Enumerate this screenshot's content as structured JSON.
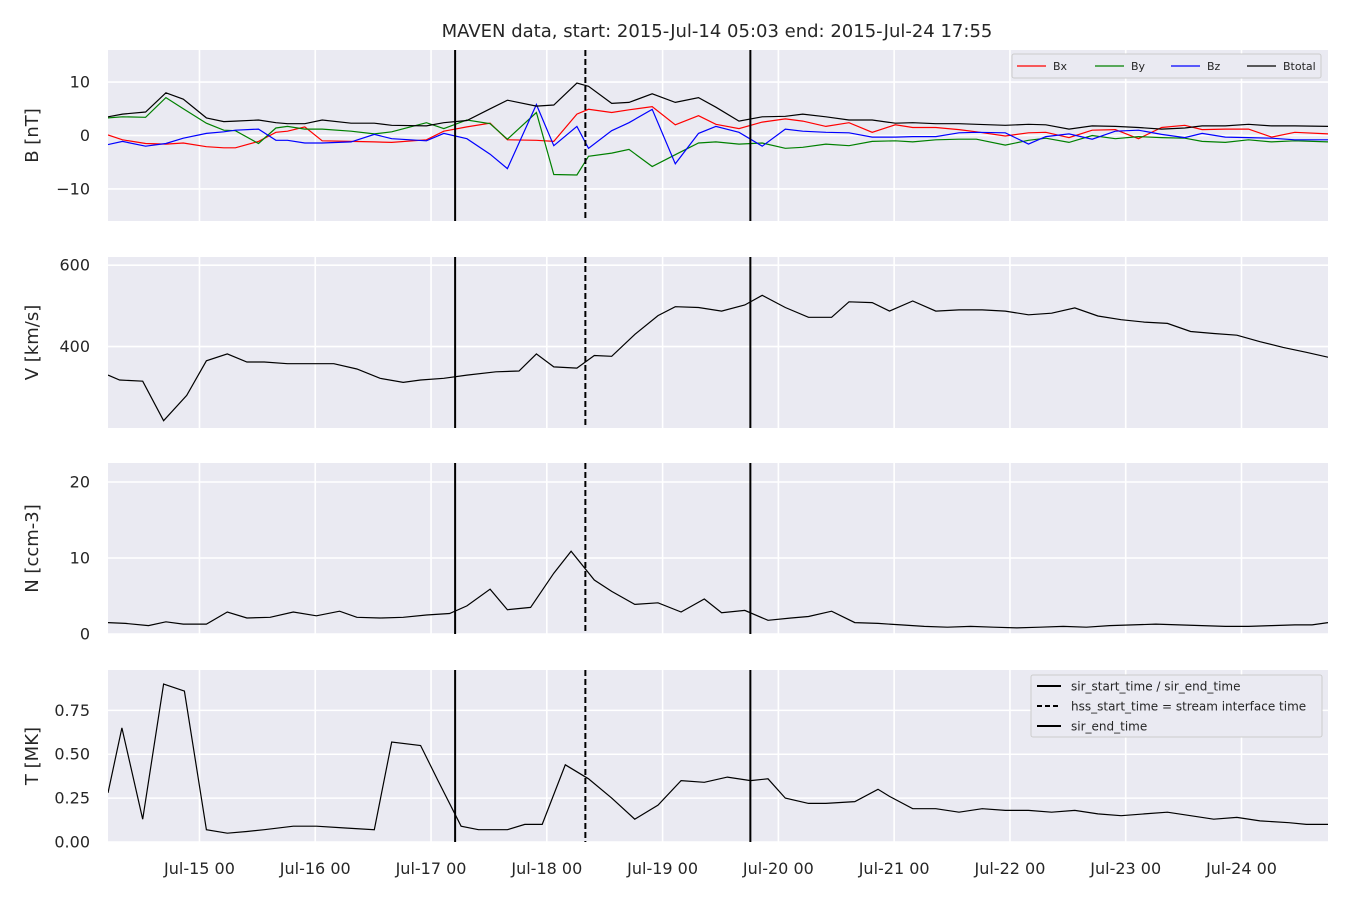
{
  "title": "MAVEN data, start: 2015-Jul-14 05:03  end: 2015-Jul-24 17:55",
  "x_ticks": [
    "Jul-15 00",
    "Jul-16 00",
    "Jul-17 00",
    "Jul-18 00",
    "Jul-19 00",
    "Jul-20 00",
    "Jul-21 00",
    "Jul-22 00",
    "Jul-23 00",
    "Jul-24 00"
  ],
  "colors": {
    "Bx": "#ff0000",
    "By": "#008000",
    "Bz": "#0000ff",
    "Btotal": "#000000",
    "plot_bg": "#eaeaf2",
    "grid": "#ffffff"
  },
  "chart_data": [
    {
      "type": "line",
      "ylabel": "B [nT]",
      "ylim": [
        -16,
        16
      ],
      "yticks": [
        -10,
        0,
        10
      ],
      "x_range": [
        0,
        10.537
      ],
      "x_unit": "days since 2015-Jul-14 05:03",
      "x": [
        0,
        0.125,
        0.325,
        0.5,
        0.65,
        0.85,
        1.0,
        1.1,
        1.3,
        1.45,
        1.55,
        1.7,
        1.85,
        2.1,
        2.3,
        2.45,
        2.75,
        2.9,
        3.1,
        3.3,
        3.45,
        3.7,
        3.85,
        4.05,
        4.15,
        4.35,
        4.5,
        4.7,
        4.9,
        5.1,
        5.25,
        5.45,
        5.65,
        5.85,
        6.0,
        6.2,
        6.4,
        6.6,
        6.8,
        6.95,
        7.15,
        7.35,
        7.5,
        7.75,
        7.95,
        8.1,
        8.3,
        8.5,
        8.7,
        8.9,
        9.1,
        9.3,
        9.45,
        9.65,
        9.85,
        10.05,
        10.25,
        10.537
      ],
      "series": [
        {
          "name": "Bx",
          "values": [
            0.1,
            -0.8,
            -1.5,
            -1.6,
            -1.4,
            -2.1,
            -2.3,
            -2.3,
            -1.1,
            0.6,
            0.8,
            1.6,
            -1.0,
            -1.1,
            -1.2,
            -1.3,
            -0.8,
            0.8,
            1.6,
            2.3,
            -0.8,
            -0.9,
            -1.1,
            4.0,
            4.9,
            4.3,
            4.8,
            5.4,
            2.0,
            3.7,
            2.1,
            1.3,
            2.5,
            3.1,
            2.7,
            1.7,
            2.4,
            0.6,
            2.0,
            1.5,
            1.5,
            1.1,
            0.7,
            -0.1,
            0.5,
            0.6,
            -0.4,
            1.0,
            1.1,
            -0.6,
            1.5,
            1.9,
            1.1,
            1.2,
            1.2,
            -0.3,
            0.6,
            0.3
          ]
        },
        {
          "name": "By",
          "values": [
            3.3,
            3.5,
            3.4,
            7.1,
            5.0,
            2.3,
            1.0,
            0.9,
            -1.5,
            1.4,
            1.7,
            1.2,
            1.2,
            0.8,
            0.3,
            0.7,
            2.4,
            1.3,
            2.9,
            2.2,
            -0.7,
            4.3,
            -7.3,
            -7.4,
            -3.9,
            -3.3,
            -2.6,
            -5.8,
            -3.6,
            -1.4,
            -1.2,
            -1.6,
            -1.4,
            -2.4,
            -2.2,
            -1.6,
            -1.9,
            -1.1,
            -1.0,
            -1.2,
            -0.8,
            -0.7,
            -0.7,
            -1.8,
            -0.9,
            -0.5,
            -1.3,
            0.0,
            -0.6,
            -0.2,
            -0.4,
            -0.5,
            -1.1,
            -1.3,
            -0.8,
            -1.2,
            -1.0,
            -1.2
          ]
        },
        {
          "name": "Bz",
          "values": [
            -1.7,
            -1.1,
            -2.0,
            -1.5,
            -0.5,
            0.4,
            0.7,
            1.0,
            1.2,
            -0.9,
            -0.9,
            -1.4,
            -1.4,
            -1.2,
            0.2,
            -0.6,
            -1.0,
            0.4,
            -0.6,
            -3.5,
            -6.2,
            5.8,
            -1.9,
            1.7,
            -2.4,
            0.9,
            2.4,
            4.9,
            -5.3,
            0.4,
            1.7,
            0.6,
            -2.0,
            1.2,
            0.8,
            0.6,
            0.5,
            -0.3,
            -0.3,
            -0.2,
            -0.2,
            0.5,
            0.6,
            0.5,
            -1.6,
            -0.2,
            0.3,
            -0.7,
            0.8,
            1.0,
            0.2,
            -0.4,
            0.4,
            -0.3,
            -0.4,
            -0.5,
            -0.8,
            -0.8
          ]
        },
        {
          "name": "Btotal",
          "values": [
            3.5,
            4.0,
            4.4,
            8.0,
            6.8,
            3.3,
            2.6,
            2.7,
            2.9,
            2.4,
            2.2,
            2.2,
            2.9,
            2.3,
            2.3,
            1.9,
            1.8,
            2.4,
            2.8,
            5.0,
            6.6,
            5.5,
            5.7,
            9.8,
            9.2,
            6.0,
            6.2,
            7.8,
            6.2,
            7.1,
            5.3,
            2.7,
            3.5,
            3.6,
            4.0,
            3.5,
            2.9,
            2.9,
            2.3,
            2.4,
            2.2,
            2.2,
            2.1,
            1.9,
            2.1,
            2.0,
            1.2,
            1.8,
            1.7,
            1.5,
            1.2,
            1.4,
            1.8,
            1.8,
            2.1,
            1.8,
            1.8,
            1.7
          ]
        }
      ],
      "legend": {
        "position": "top-right",
        "entries": [
          "Bx",
          "By",
          "Bz",
          "Btotal"
        ]
      }
    },
    {
      "type": "line",
      "ylabel": "V [km/s]",
      "ylim": [
        200,
        620
      ],
      "yticks": [
        400,
        600
      ],
      "x": [
        0,
        0.1,
        0.3,
        0.48,
        0.68,
        0.85,
        1.03,
        1.2,
        1.35,
        1.55,
        1.75,
        1.95,
        2.15,
        2.35,
        2.55,
        2.7,
        2.9,
        3.1,
        3.35,
        3.55,
        3.7,
        3.85,
        4.05,
        4.2,
        4.35,
        4.55,
        4.75,
        4.9,
        5.1,
        5.3,
        5.5,
        5.65,
        5.85,
        6.05,
        6.25,
        6.4,
        6.6,
        6.75,
        6.95,
        7.15,
        7.35,
        7.55,
        7.75,
        7.95,
        8.15,
        8.35,
        8.55,
        8.75,
        8.95,
        9.15,
        9.35,
        9.55,
        9.75,
        9.95,
        10.15,
        10.35,
        10.537
      ],
      "series": [
        {
          "name": "V",
          "values": [
            330,
            318,
            315,
            218,
            280,
            365,
            382,
            362,
            362,
            358,
            358,
            358,
            345,
            322,
            312,
            318,
            322,
            330,
            338,
            340,
            382,
            350,
            347,
            378,
            376,
            430,
            476,
            498,
            496,
            487,
            502,
            526,
            496,
            472,
            472,
            510,
            508,
            487,
            512,
            487,
            490,
            490,
            487,
            478,
            482,
            495,
            475,
            466,
            460,
            457,
            437,
            432,
            428,
            412,
            398,
            386,
            374
          ]
        }
      ]
    },
    {
      "type": "line",
      "ylabel": "N [ccm-3]",
      "ylim": [
        0,
        22.5
      ],
      "yticks": [
        0,
        10,
        20
      ],
      "x": [
        0,
        0.15,
        0.35,
        0.5,
        0.65,
        0.85,
        1.03,
        1.2,
        1.4,
        1.6,
        1.8,
        2.0,
        2.15,
        2.35,
        2.55,
        2.75,
        2.95,
        3.1,
        3.3,
        3.45,
        3.65,
        3.85,
        4.0,
        4.2,
        4.35,
        4.55,
        4.75,
        4.95,
        5.15,
        5.3,
        5.5,
        5.7,
        5.9,
        6.05,
        6.25,
        6.45,
        6.65,
        6.85,
        7.05,
        7.25,
        7.45,
        7.65,
        7.85,
        8.05,
        8.25,
        8.45,
        8.65,
        8.85,
        9.05,
        9.25,
        9.45,
        9.65,
        9.85,
        10.05,
        10.25,
        10.4,
        10.537
      ],
      "series": [
        {
          "name": "N",
          "values": [
            1.5,
            1.4,
            1.1,
            1.6,
            1.3,
            1.3,
            2.9,
            2.1,
            2.2,
            2.9,
            2.4,
            3.0,
            2.2,
            2.1,
            2.2,
            2.5,
            2.7,
            3.7,
            5.9,
            3.2,
            3.5,
            8.0,
            10.9,
            7.1,
            5.6,
            3.9,
            4.1,
            2.9,
            4.6,
            2.8,
            3.1,
            1.8,
            2.1,
            2.3,
            3.0,
            1.5,
            1.4,
            1.2,
            1.0,
            0.9,
            1.0,
            0.9,
            0.8,
            0.9,
            1.0,
            0.9,
            1.1,
            1.2,
            1.3,
            1.2,
            1.1,
            1.0,
            1.0,
            1.1,
            1.2,
            1.2,
            1.5
          ]
        }
      ]
    },
    {
      "type": "line",
      "ylabel": "T [MK]",
      "ylim": [
        0,
        0.98
      ],
      "yticks": [
        0.0,
        0.25,
        0.5,
        0.75
      ],
      "x": [
        0,
        0.12,
        0.3,
        0.48,
        0.66,
        0.85,
        1.03,
        1.2,
        1.35,
        1.6,
        1.8,
        2.05,
        2.3,
        2.45,
        2.7,
        2.85,
        3.05,
        3.2,
        3.45,
        3.6,
        3.75,
        3.95,
        4.15,
        4.35,
        4.55,
        4.75,
        4.95,
        5.15,
        5.35,
        5.55,
        5.7,
        5.85,
        6.05,
        6.2,
        6.45,
        6.65,
        6.75,
        6.95,
        7.15,
        7.35,
        7.55,
        7.75,
        7.95,
        8.15,
        8.35,
        8.55,
        8.75,
        8.95,
        9.15,
        9.35,
        9.55,
        9.75,
        9.95,
        10.2,
        10.35,
        10.537
      ],
      "series": [
        {
          "name": "T",
          "values": [
            0.28,
            0.65,
            0.13,
            0.9,
            0.86,
            0.07,
            0.05,
            0.06,
            0.07,
            0.09,
            0.09,
            0.08,
            0.07,
            0.57,
            0.55,
            0.35,
            0.09,
            0.07,
            0.07,
            0.1,
            0.1,
            0.44,
            0.36,
            0.25,
            0.13,
            0.21,
            0.35,
            0.34,
            0.37,
            0.35,
            0.36,
            0.25,
            0.22,
            0.22,
            0.23,
            0.3,
            0.26,
            0.19,
            0.19,
            0.17,
            0.19,
            0.18,
            0.18,
            0.17,
            0.18,
            0.16,
            0.15,
            0.16,
            0.17,
            0.15,
            0.13,
            0.14,
            0.12,
            0.11,
            0.1,
            0.1
          ]
        }
      ],
      "legend": {
        "position": "top-right",
        "entries": [
          {
            "label": "sir_start_time / sir_end_time",
            "style": "solid"
          },
          {
            "label": "hss_start_time = stream interface time",
            "style": "dashed"
          },
          {
            "label": "sir_end_time",
            "style": "solid"
          }
        ]
      }
    }
  ],
  "event_lines": [
    {
      "x": 2.998,
      "style": "solid"
    },
    {
      "x": 4.123,
      "style": "dashed"
    },
    {
      "x": 5.548,
      "style": "solid"
    }
  ]
}
